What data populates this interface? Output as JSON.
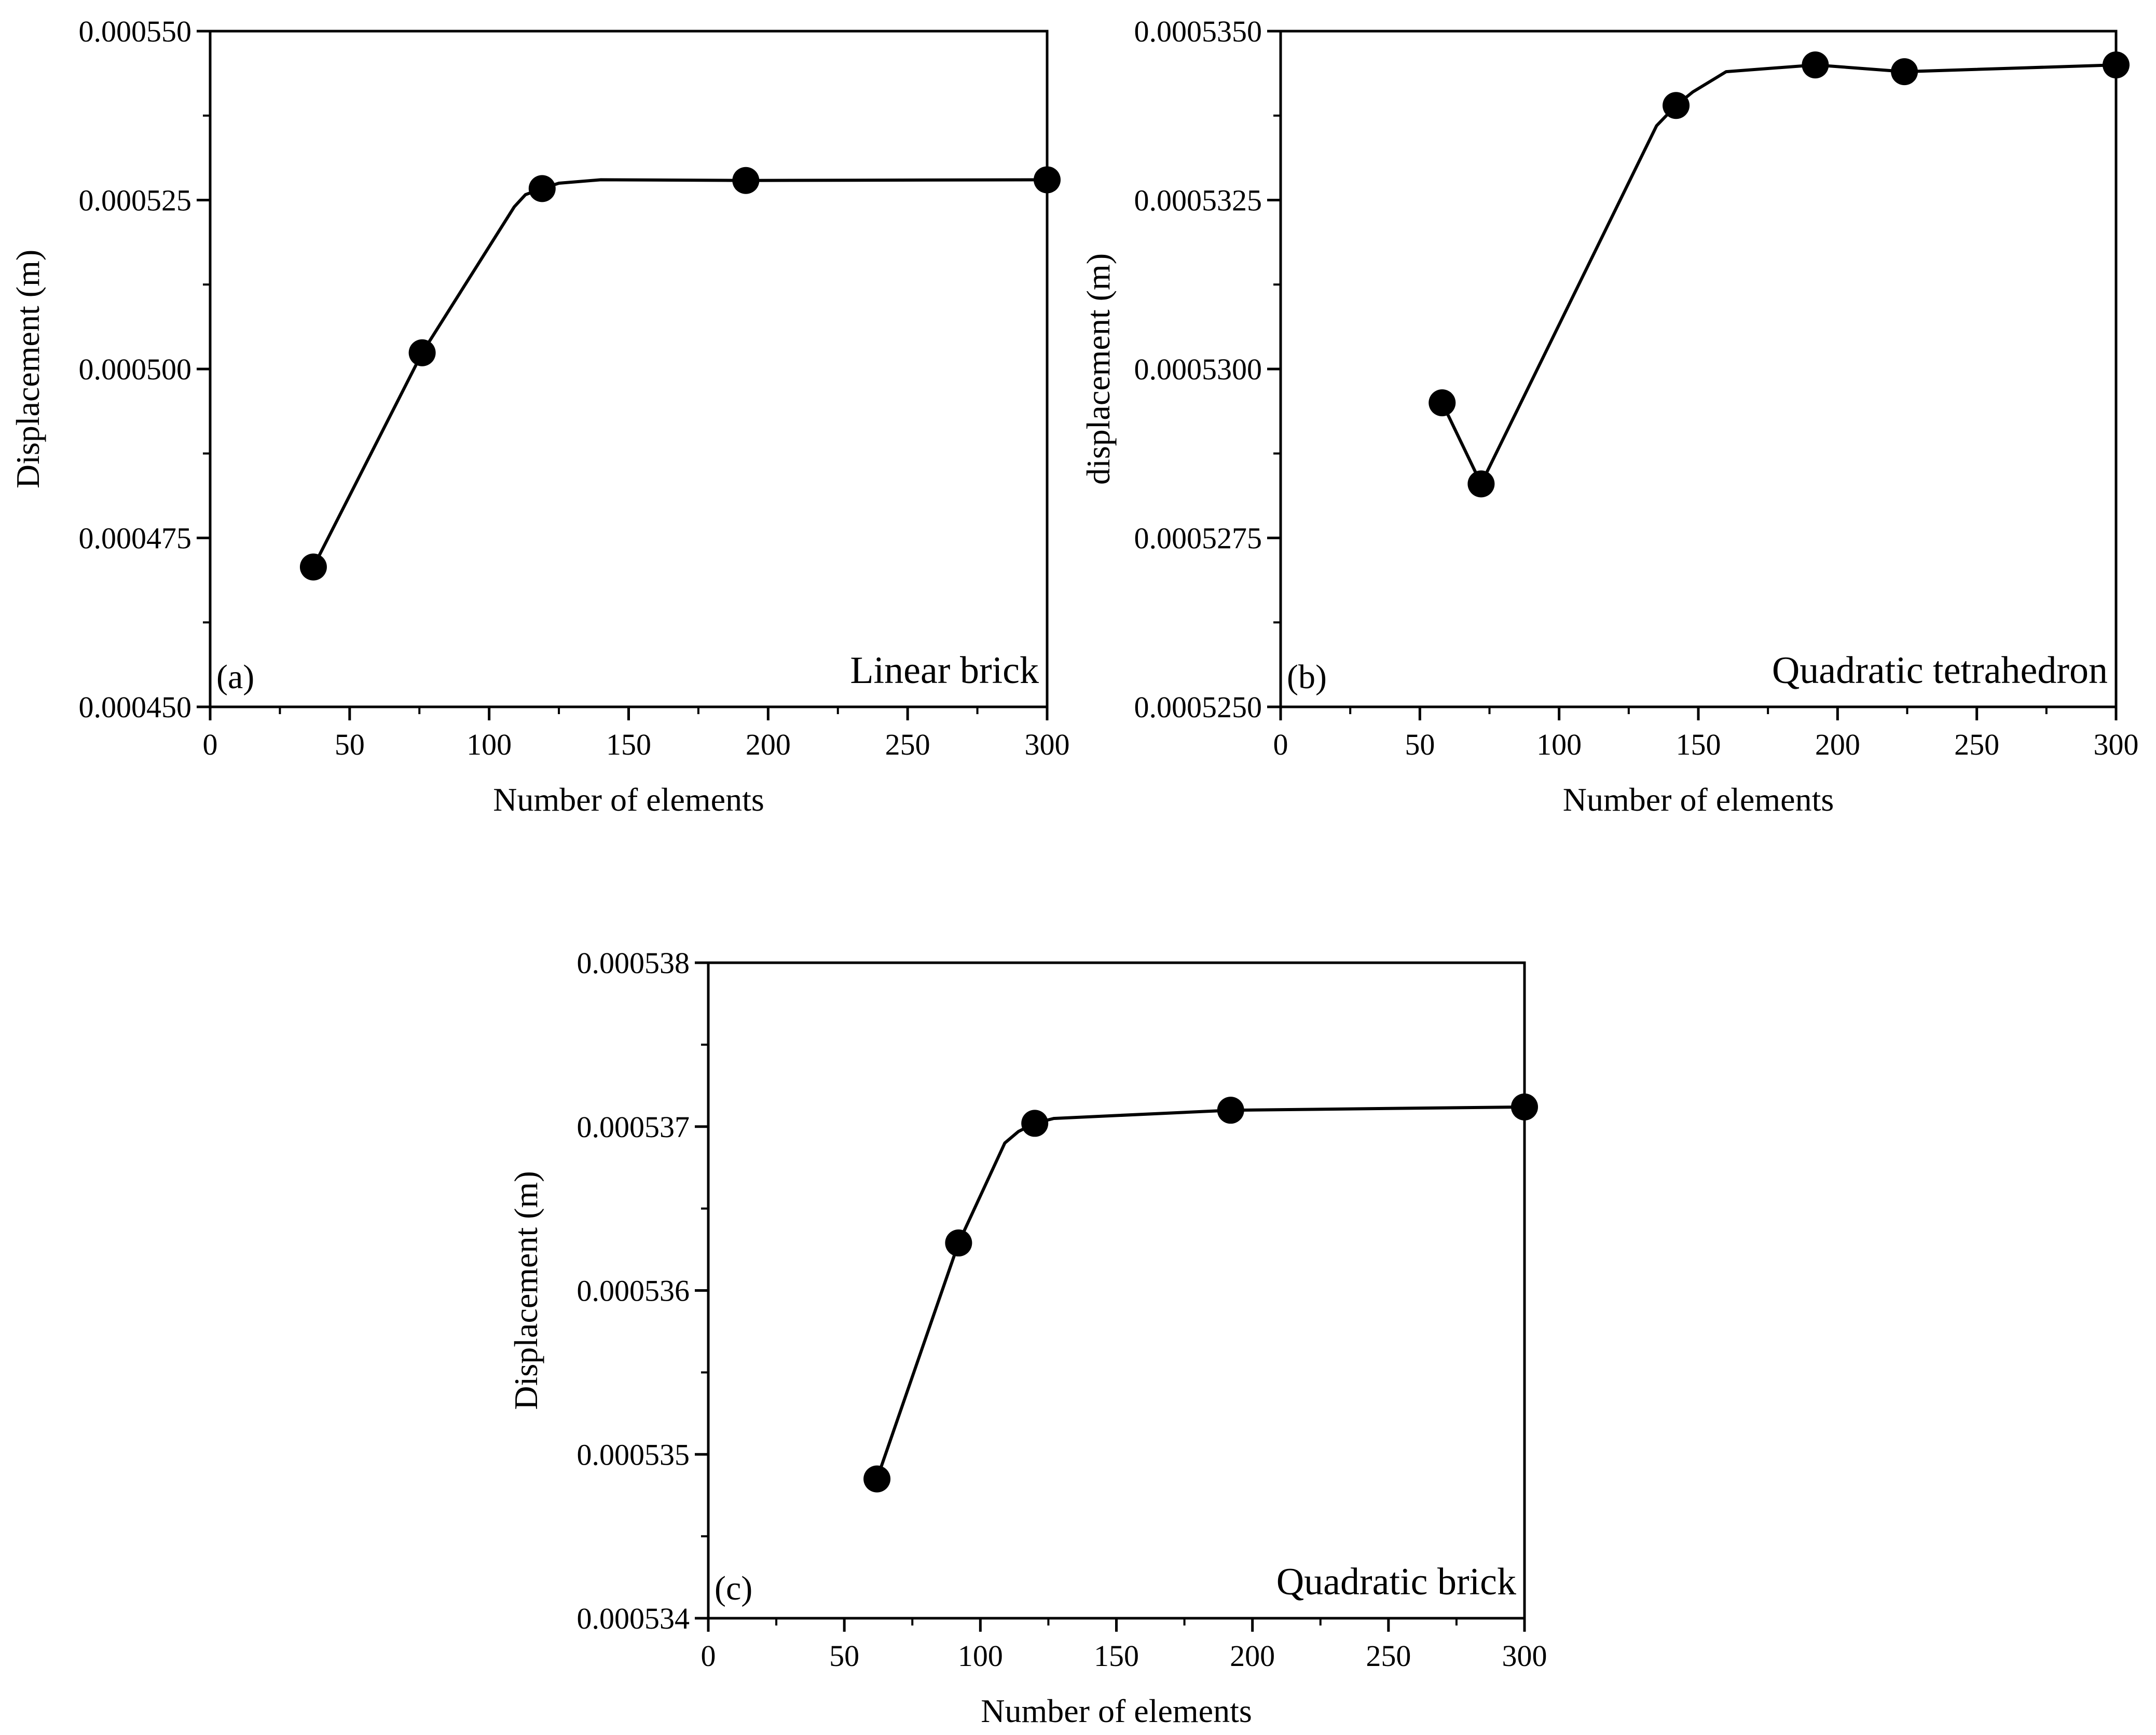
{
  "figure": {
    "colors": {
      "line": "#000000",
      "marker": "#000000",
      "background": "#ffffff"
    }
  },
  "chart_data": [
    {
      "type": "line",
      "panel_label": "(a)",
      "element_label": "Linear brick",
      "xlabel": "Number of elements",
      "ylabel": "Displacement (m)",
      "xlim": [
        0,
        300
      ],
      "ylim": [
        0.00045,
        0.00055
      ],
      "xticks": [
        0,
        50,
        100,
        150,
        200,
        250,
        300
      ],
      "xtick_labels": [
        "0",
        "50",
        "100",
        "150",
        "200",
        "250",
        "300"
      ],
      "yticks": [
        0.00045,
        0.000475,
        0.0005,
        0.000525,
        0.00055
      ],
      "ytick_labels": [
        "0.000450",
        "0.000475",
        "0.000500",
        "0.000525",
        "0.000550"
      ],
      "x_minor": 25,
      "y_minor": 1.25e-05,
      "points": {
        "x": [
          37,
          76,
          119,
          192,
          300
        ],
        "y": [
          0.0004707,
          0.0005024,
          0.0005267,
          0.0005279,
          0.000528
        ]
      },
      "curve": {
        "x": [
          37,
          76,
          109,
          113,
          119,
          125,
          140,
          192,
          300
        ],
        "y": [
          0.0004707,
          0.0005024,
          0.000524,
          0.0005258,
          0.0005267,
          0.0005275,
          0.000528,
          0.0005279,
          0.000528
        ]
      }
    },
    {
      "type": "line",
      "panel_label": "(b)",
      "element_label": "Quadratic tetrahedron",
      "xlabel": "Number of elements",
      "ylabel": "displacement (m)",
      "xlim": [
        0,
        300
      ],
      "ylim": [
        0.000525,
        0.000535
      ],
      "xticks": [
        0,
        50,
        100,
        150,
        200,
        250,
        300
      ],
      "xtick_labels": [
        "0",
        "50",
        "100",
        "150",
        "200",
        "250",
        "300"
      ],
      "yticks": [
        0.000525,
        0.0005275,
        0.00053,
        0.0005325,
        0.000535
      ],
      "ytick_labels": [
        "0.0005250",
        "0.0005275",
        "0.0005300",
        "0.0005325",
        "0.0005350"
      ],
      "x_minor": 25,
      "y_minor": 1.25e-06,
      "points": {
        "x": [
          58,
          72,
          142,
          192,
          224,
          300
        ],
        "y": [
          0.0005295,
          0.0005283,
          0.0005339,
          0.0005345,
          0.0005344,
          0.0005345
        ]
      },
      "curve": {
        "x": [
          58,
          72,
          135,
          142,
          148,
          160,
          192,
          224,
          300
        ],
        "y": [
          0.0005295,
          0.0005283,
          0.0005336,
          0.0005339,
          0.0005341,
          0.0005344,
          0.0005345,
          0.0005344,
          0.0005345
        ]
      }
    },
    {
      "type": "line",
      "panel_label": "(c)",
      "element_label": "Quadratic brick",
      "xlabel": "Number of elements",
      "ylabel": "Displacement (m)",
      "xlim": [
        0,
        300
      ],
      "ylim": [
        0.000534,
        0.000538
      ],
      "xticks": [
        0,
        50,
        100,
        150,
        200,
        250,
        300
      ],
      "xtick_labels": [
        "0",
        "50",
        "100",
        "150",
        "200",
        "250",
        "300"
      ],
      "yticks": [
        0.000534,
        0.000535,
        0.000536,
        0.000537,
        0.000538
      ],
      "ytick_labels": [
        "0.000534",
        "0.000535",
        "0.000536",
        "0.000537",
        "0.000538"
      ],
      "x_minor": 25,
      "y_minor": 5e-07,
      "points": {
        "x": [
          62,
          92,
          120,
          192,
          300
        ],
        "y": [
          0.00053485,
          0.00053629,
          0.00053702,
          0.0005371,
          0.00053712
        ]
      },
      "curve": {
        "x": [
          62,
          92,
          109,
          114,
          120,
          127,
          192,
          300
        ],
        "y": [
          0.00053485,
          0.00053629,
          0.0005369,
          0.00053697,
          0.00053702,
          0.00053705,
          0.0005371,
          0.00053712
        ]
      }
    }
  ]
}
